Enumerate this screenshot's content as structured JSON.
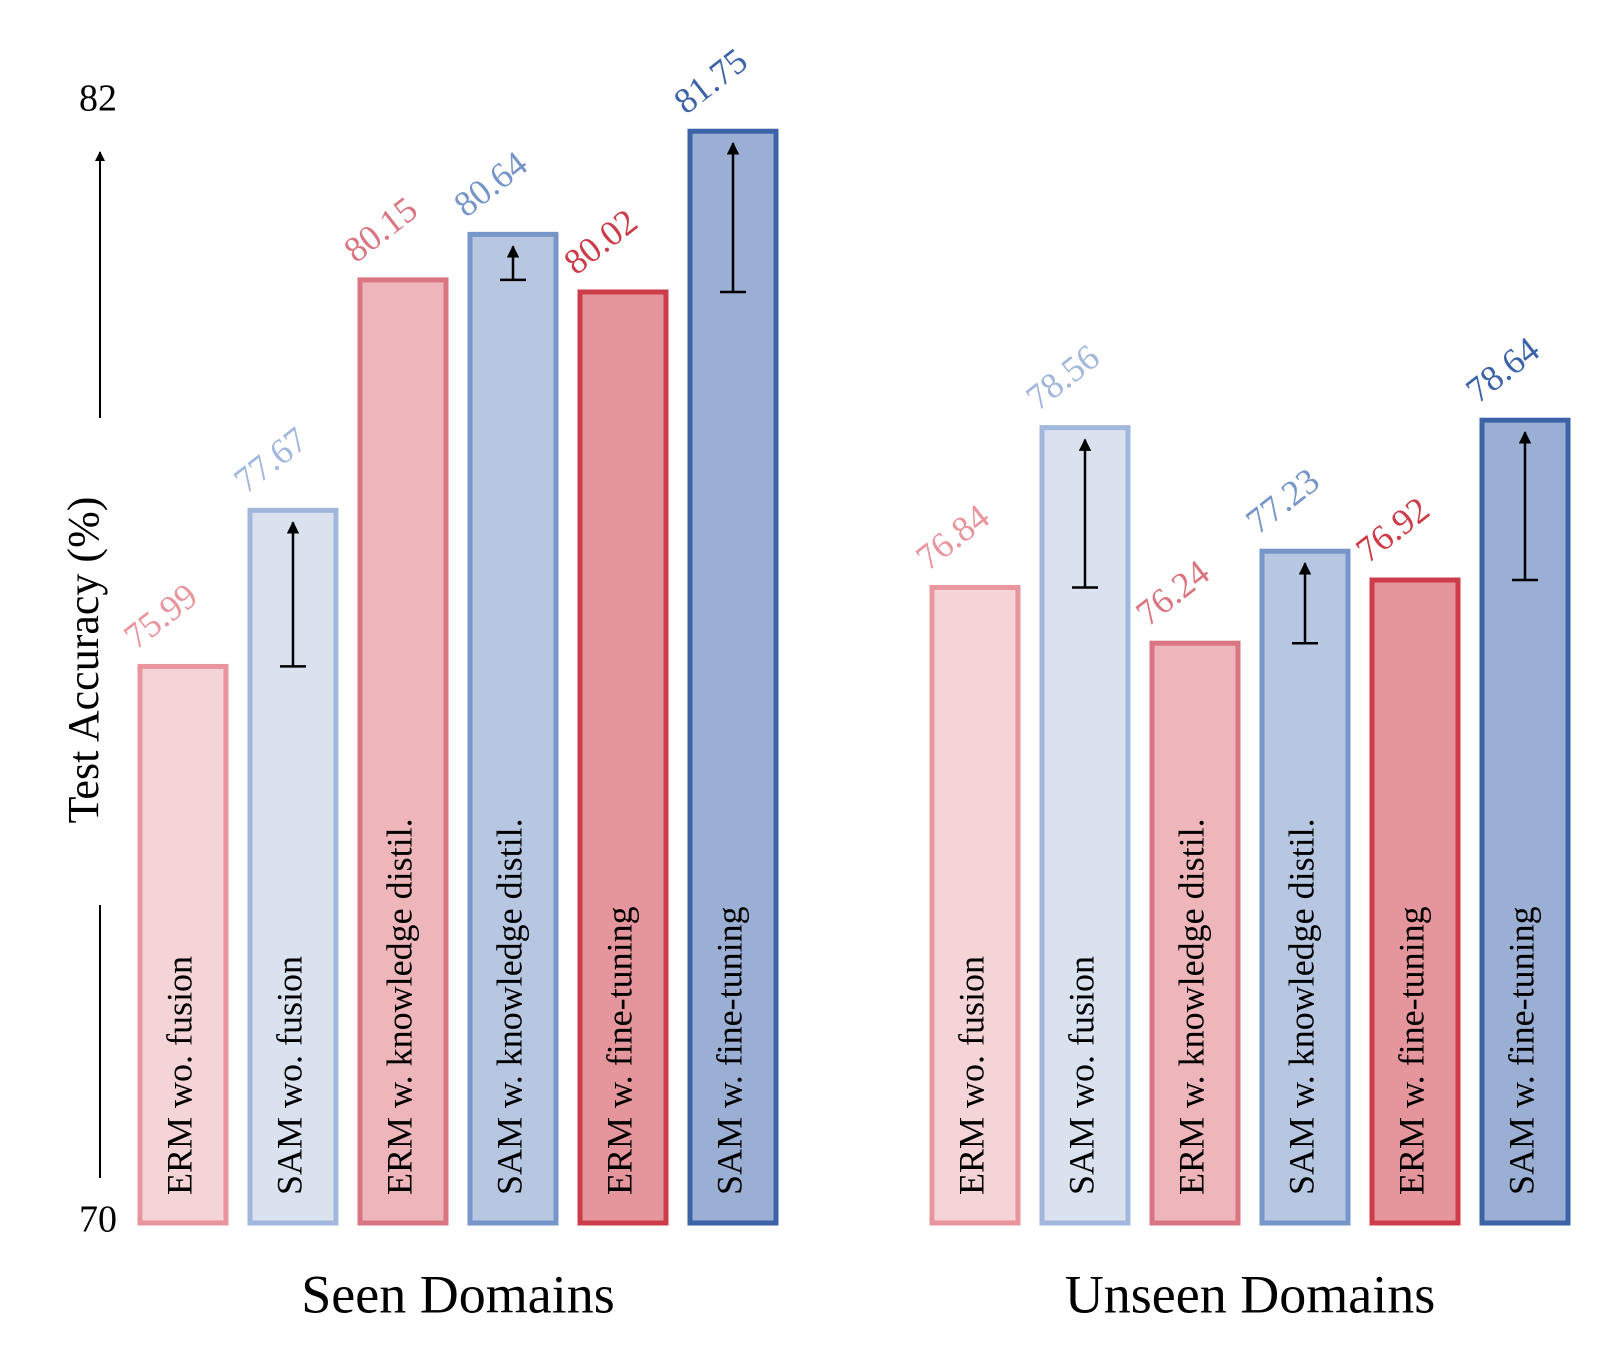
{
  "chart_data": {
    "type": "bar",
    "ylabel": "Test Accuracy (%)",
    "categories": [
      "Seen Domains",
      "Unseen Domains"
    ],
    "ylim": [
      70,
      82
    ],
    "yticks": [
      70,
      82
    ],
    "series": [
      {
        "name": "ERM wo. fusion",
        "color": "#f5d4d8",
        "edgecolor": "#e8959e",
        "values": [
          75.99,
          76.84
        ]
      },
      {
        "name": "SAM wo. fusion",
        "color": "#dae2f0",
        "edgecolor": "#a2b7dc",
        "values": [
          77.67,
          78.56
        ]
      },
      {
        "name": "ERM w. knowledge distil.",
        "color": "#eeb5bb",
        "edgecolor": "#da7681",
        "values": [
          80.15,
          76.24
        ]
      },
      {
        "name": "SAM w. knowledge distil.",
        "color": "#b7c7e2",
        "edgecolor": "#7695c8",
        "values": [
          80.64,
          77.23
        ]
      },
      {
        "name": "ERM w. fine-tuning",
        "color": "#e5969c",
        "edgecolor": "#cc3c49",
        "values": [
          80.02,
          76.92
        ]
      },
      {
        "name": "SAM w. fine-tuning",
        "color": "#9bafd4",
        "edgecolor": "#3c63a8",
        "values": [
          81.75,
          78.64
        ]
      }
    ]
  }
}
